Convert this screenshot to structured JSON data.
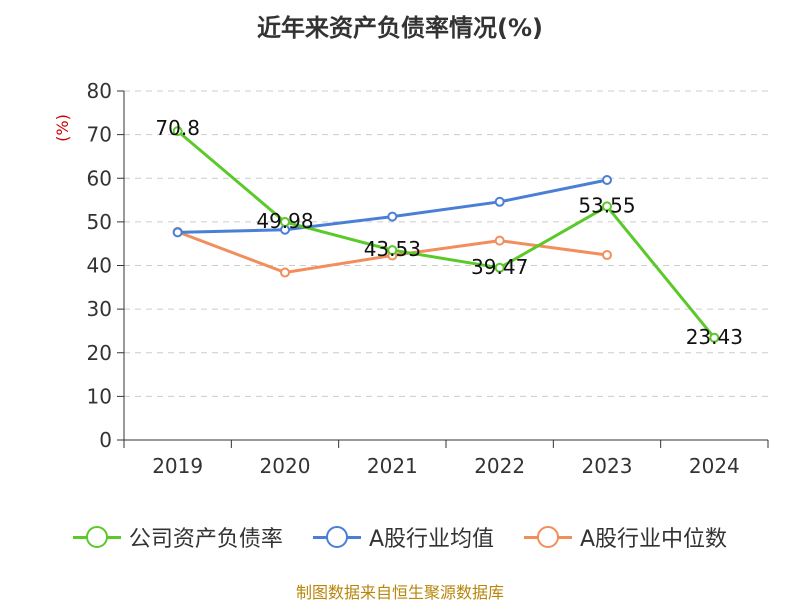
{
  "chart_data": {
    "type": "line",
    "title": "近年来资产负债率情况(%)",
    "ylabel": "(%)",
    "categories": [
      "2019",
      "2020",
      "2021",
      "2022",
      "2023",
      "2024"
    ],
    "ylim": [
      0,
      80
    ],
    "yticks": [
      0,
      10,
      20,
      30,
      40,
      50,
      60,
      70,
      80
    ],
    "grid": true,
    "legend_position": "bottom",
    "series": [
      {
        "name": "公司资产负债率",
        "color": "#5cc92b",
        "values": [
          70.8,
          49.98,
          43.53,
          39.47,
          53.55,
          23.43
        ],
        "data_labels": [
          "70.8",
          "49.98",
          "43.53",
          "39.47",
          "53.55",
          "23.43"
        ]
      },
      {
        "name": "A股行业均值",
        "color": "#4a7fd6",
        "values": [
          47.6,
          48.2,
          51.2,
          54.6,
          59.6,
          null
        ]
      },
      {
        "name": "A股行业中位数",
        "color": "#f28e5c",
        "values": [
          47.7,
          38.4,
          42.3,
          45.7,
          42.4,
          null
        ]
      }
    ]
  },
  "source_note": "制图数据来自恒生聚源数据库"
}
